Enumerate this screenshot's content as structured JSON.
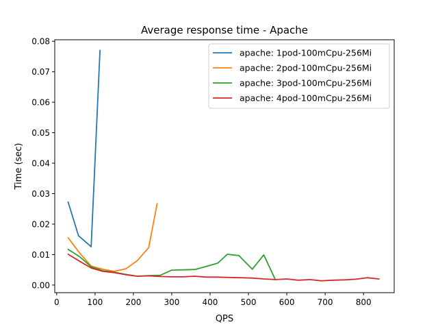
{
  "chart_data": {
    "type": "line",
    "title": "Average response time - Apache",
    "xlabel": "QPS",
    "ylabel": "Time (sec)",
    "xlim": [
      -5,
      880
    ],
    "ylim": [
      -0.0025,
      0.0805
    ],
    "xticks": [
      0,
      100,
      200,
      300,
      400,
      500,
      600,
      700,
      800
    ],
    "xtick_labels": [
      "0",
      "100",
      "200",
      "300",
      "400",
      "500",
      "600",
      "700",
      "800"
    ],
    "yticks": [
      0.0,
      0.01,
      0.02,
      0.03,
      0.04,
      0.05,
      0.06,
      0.07,
      0.08
    ],
    "ytick_labels": [
      "0.00",
      "0.01",
      "0.02",
      "0.03",
      "0.04",
      "0.05",
      "0.06",
      "0.07",
      "0.08"
    ],
    "grid": false,
    "legend_position": "top-right",
    "series": [
      {
        "name": "apache: 1pod-100mCpu-256Mi",
        "color": "#1f77b4",
        "x": [
          30,
          57,
          90,
          113
        ],
        "y": [
          0.0272,
          0.0162,
          0.0126,
          0.077
        ]
      },
      {
        "name": "apache: 2pod-100mCpu-256Mi",
        "color": "#ff7f0e",
        "x": [
          30,
          60,
          90,
          120,
          150,
          180,
          210,
          240,
          262
        ],
        "y": [
          0.0155,
          0.0105,
          0.0062,
          0.0052,
          0.0045,
          0.0053,
          0.008,
          0.0123,
          0.0267
        ]
      },
      {
        "name": "apache: 3pod-100mCpu-256Mi",
        "color": "#2ca02c",
        "x": [
          30,
          60,
          90,
          120,
          150,
          180,
          210,
          240,
          270,
          300,
          330,
          360,
          390,
          420,
          445,
          475,
          510,
          540,
          570
        ],
        "y": [
          0.0117,
          0.0093,
          0.006,
          0.0047,
          0.0042,
          0.0035,
          0.0029,
          0.0031,
          0.0032,
          0.0049,
          0.005,
          0.0051,
          0.0061,
          0.0072,
          0.0101,
          0.0097,
          0.0052,
          0.0099,
          0.0018
        ]
      },
      {
        "name": "apache: 4pod-100mCpu-256Mi",
        "color": "#d62728",
        "x": [
          30,
          60,
          90,
          120,
          150,
          180,
          210,
          240,
          270,
          300,
          330,
          360,
          390,
          420,
          450,
          480,
          510,
          540,
          570,
          600,
          630,
          660,
          690,
          720,
          750,
          780,
          810,
          840
        ],
        "y": [
          0.0101,
          0.0078,
          0.0056,
          0.0045,
          0.0041,
          0.0034,
          0.0029,
          0.003,
          0.0028,
          0.0027,
          0.0027,
          0.0029,
          0.0026,
          0.0026,
          0.0025,
          0.0024,
          0.0023,
          0.002,
          0.0018,
          0.002,
          0.0016,
          0.0018,
          0.0014,
          0.0016,
          0.0017,
          0.0019,
          0.0024,
          0.002
        ]
      }
    ]
  }
}
